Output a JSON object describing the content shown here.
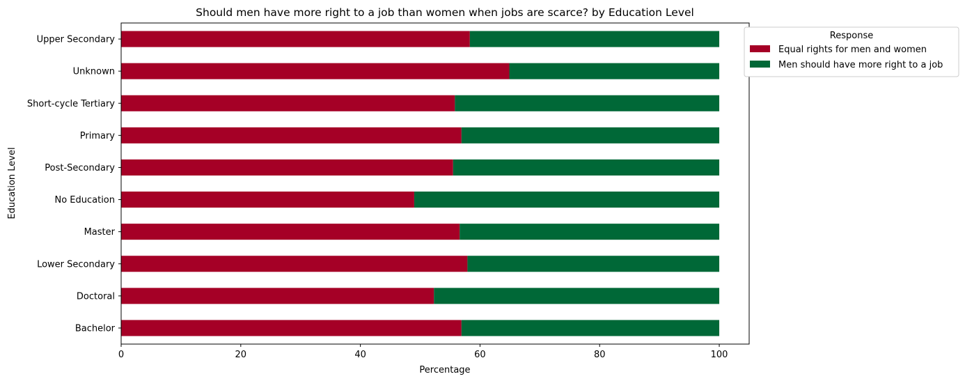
{
  "chart_data": {
    "type": "bar",
    "orientation": "horizontal",
    "stacked": true,
    "title": "Should men have more right to a job than women when jobs are scarce? by Education Level",
    "xlabel": "Percentage",
    "ylabel": "Education Level",
    "xlim": [
      0,
      105
    ],
    "xticks": [
      0,
      20,
      40,
      60,
      80,
      100
    ],
    "grid": false,
    "legend_title": "Response",
    "legend_position": "outside upper right",
    "categories": [
      "Bachelor",
      "Doctoral",
      "Lower Secondary",
      "Master",
      "No Education",
      "Post-Secondary",
      "Primary",
      "Short-cycle Tertiary",
      "Unknown",
      "Upper Secondary"
    ],
    "series": [
      {
        "name": "Equal rights for men and women",
        "color": "#a50026",
        "values": [
          56.9,
          52.3,
          57.9,
          56.6,
          49.0,
          55.5,
          56.9,
          55.8,
          64.9,
          58.3
        ]
      },
      {
        "name": "Men should have more right to a job",
        "color": "#006837",
        "values": [
          43.1,
          47.7,
          42.1,
          43.4,
          51.0,
          44.5,
          43.1,
          44.2,
          35.1,
          41.7
        ]
      }
    ]
  }
}
